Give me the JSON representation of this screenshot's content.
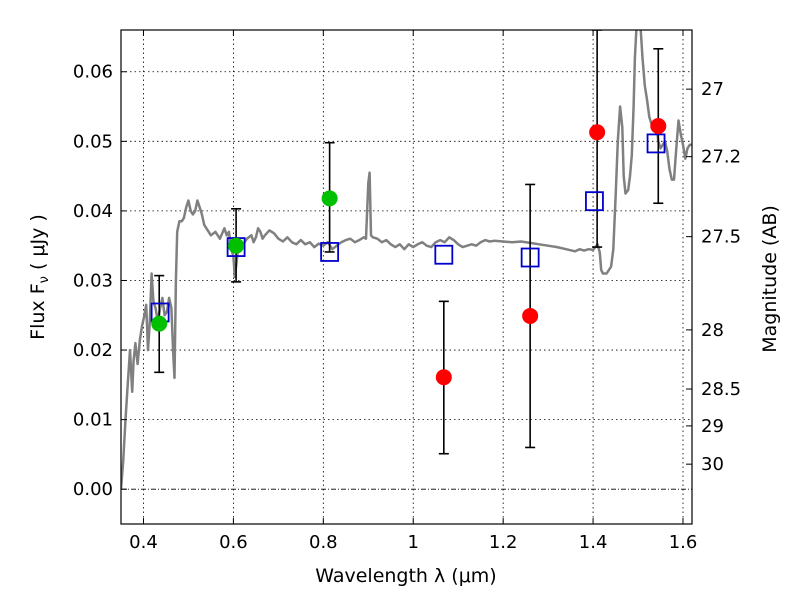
{
  "chart_data": {
    "type": "scatter",
    "xlabel": "Wavelength  λ (μm)",
    "ylabel": "Flux  F",
    "ylabel_sub": "ν",
    "ylabel_unit": "  ( μJy )",
    "y2label": "Magnitude (AB)",
    "xlim": [
      0.35,
      1.62
    ],
    "ylim": [
      -0.005,
      0.066
    ],
    "grid": true,
    "x_ticks": [
      {
        "value": 0.4,
        "label": "0.4"
      },
      {
        "value": 0.6,
        "label": "0.6"
      },
      {
        "value": 0.8,
        "label": "0.8"
      },
      {
        "value": 1.0,
        "label": "1"
      },
      {
        "value": 1.2,
        "label": "1.2"
      },
      {
        "value": 1.4,
        "label": "1.4"
      },
      {
        "value": 1.6,
        "label": "1.6"
      }
    ],
    "y_ticks": [
      {
        "value": 0.0,
        "label": "0.00"
      },
      {
        "value": 0.01,
        "label": "0.01"
      },
      {
        "value": 0.02,
        "label": "0.02"
      },
      {
        "value": 0.03,
        "label": "0.03"
      },
      {
        "value": 0.04,
        "label": "0.04"
      },
      {
        "value": 0.05,
        "label": "0.05"
      },
      {
        "value": 0.06,
        "label": "0.06"
      }
    ],
    "y2_ticks": [
      {
        "flux": 0.0575,
        "label": "27"
      },
      {
        "flux": 0.0478,
        "label": "27.2"
      },
      {
        "flux": 0.0363,
        "label": "27.5"
      },
      {
        "flux": 0.0229,
        "label": "28"
      },
      {
        "flux": 0.0144,
        "label": "28.5"
      },
      {
        "flux": 0.0091,
        "label": "29"
      },
      {
        "flux": 0.0036,
        "label": "30"
      }
    ],
    "series": [
      {
        "kind": "line",
        "color": "#808080",
        "points": [
          [
            0.35,
            0.0
          ],
          [
            0.355,
            0.004
          ],
          [
            0.36,
            0.01
          ],
          [
            0.365,
            0.015
          ],
          [
            0.37,
            0.02
          ],
          [
            0.375,
            0.014
          ],
          [
            0.378,
            0.0185
          ],
          [
            0.382,
            0.021
          ],
          [
            0.387,
            0.018
          ],
          [
            0.392,
            0.0215
          ],
          [
            0.397,
            0.0235
          ],
          [
            0.402,
            0.025
          ],
          [
            0.406,
            0.0265
          ],
          [
            0.41,
            0.02
          ],
          [
            0.414,
            0.024
          ],
          [
            0.418,
            0.031
          ],
          [
            0.422,
            0.027
          ],
          [
            0.427,
            0.026
          ],
          [
            0.432,
            0.024
          ],
          [
            0.437,
            0.026
          ],
          [
            0.442,
            0.0275
          ],
          [
            0.447,
            0.025
          ],
          [
            0.452,
            0.0255
          ],
          [
            0.457,
            0.0275
          ],
          [
            0.462,
            0.026
          ],
          [
            0.466,
            0.0195
          ],
          [
            0.469,
            0.016
          ],
          [
            0.472,
            0.03
          ],
          [
            0.475,
            0.037
          ],
          [
            0.48,
            0.0385
          ],
          [
            0.485,
            0.0385
          ],
          [
            0.49,
            0.039
          ],
          [
            0.495,
            0.0405
          ],
          [
            0.5,
            0.0415
          ],
          [
            0.505,
            0.04
          ],
          [
            0.51,
            0.0395
          ],
          [
            0.515,
            0.04
          ],
          [
            0.52,
            0.0415
          ],
          [
            0.525,
            0.0405
          ],
          [
            0.53,
            0.0395
          ],
          [
            0.535,
            0.038
          ],
          [
            0.54,
            0.0375
          ],
          [
            0.55,
            0.0365
          ],
          [
            0.56,
            0.037
          ],
          [
            0.57,
            0.036
          ],
          [
            0.58,
            0.0375
          ],
          [
            0.585,
            0.0365
          ],
          [
            0.59,
            0.037
          ],
          [
            0.595,
            0.0345
          ],
          [
            0.6,
            0.0335
          ],
          [
            0.603,
            0.0305
          ],
          [
            0.607,
            0.0325
          ],
          [
            0.61,
            0.0345
          ],
          [
            0.62,
            0.035
          ],
          [
            0.63,
            0.036
          ],
          [
            0.64,
            0.0365
          ],
          [
            0.645,
            0.0355
          ],
          [
            0.65,
            0.0362
          ],
          [
            0.655,
            0.0375
          ],
          [
            0.66,
            0.037
          ],
          [
            0.665,
            0.036
          ],
          [
            0.67,
            0.0365
          ],
          [
            0.68,
            0.0372
          ],
          [
            0.69,
            0.0368
          ],
          [
            0.7,
            0.036
          ],
          [
            0.71,
            0.0356
          ],
          [
            0.72,
            0.0362
          ],
          [
            0.73,
            0.0355
          ],
          [
            0.74,
            0.0352
          ],
          [
            0.75,
            0.0358
          ],
          [
            0.76,
            0.0352
          ],
          [
            0.77,
            0.0355
          ],
          [
            0.78,
            0.0348
          ],
          [
            0.79,
            0.0353
          ],
          [
            0.8,
            0.035
          ],
          [
            0.81,
            0.0355
          ],
          [
            0.82,
            0.0345
          ],
          [
            0.83,
            0.035
          ],
          [
            0.84,
            0.0355
          ],
          [
            0.85,
            0.0358
          ],
          [
            0.86,
            0.036
          ],
          [
            0.87,
            0.0355
          ],
          [
            0.88,
            0.0358
          ],
          [
            0.89,
            0.0362
          ],
          [
            0.895,
            0.036
          ],
          [
            0.9,
            0.044
          ],
          [
            0.903,
            0.0455
          ],
          [
            0.906,
            0.0365
          ],
          [
            0.91,
            0.0362
          ],
          [
            0.92,
            0.036
          ],
          [
            0.93,
            0.0355
          ],
          [
            0.94,
            0.0358
          ],
          [
            0.95,
            0.0352
          ],
          [
            0.96,
            0.0348
          ],
          [
            0.97,
            0.0352
          ],
          [
            0.98,
            0.0345
          ],
          [
            0.99,
            0.0352
          ],
          [
            1.0,
            0.0348
          ],
          [
            1.01,
            0.0352
          ],
          [
            1.02,
            0.0355
          ],
          [
            1.03,
            0.035
          ],
          [
            1.04,
            0.0348
          ],
          [
            1.05,
            0.0355
          ],
          [
            1.06,
            0.0358
          ],
          [
            1.07,
            0.0355
          ],
          [
            1.08,
            0.0362
          ],
          [
            1.09,
            0.0358
          ],
          [
            1.1,
            0.0352
          ],
          [
            1.11,
            0.0348
          ],
          [
            1.12,
            0.035
          ],
          [
            1.13,
            0.0352
          ],
          [
            1.14,
            0.035
          ],
          [
            1.15,
            0.0355
          ],
          [
            1.16,
            0.0358
          ],
          [
            1.17,
            0.0356
          ],
          [
            1.18,
            0.0357
          ],
          [
            1.2,
            0.0356
          ],
          [
            1.22,
            0.0355
          ],
          [
            1.24,
            0.0356
          ],
          [
            1.26,
            0.0354
          ],
          [
            1.28,
            0.0352
          ],
          [
            1.3,
            0.035
          ],
          [
            1.32,
            0.0348
          ],
          [
            1.34,
            0.0345
          ],
          [
            1.36,
            0.0342
          ],
          [
            1.37,
            0.0345
          ],
          [
            1.38,
            0.0343
          ],
          [
            1.39,
            0.0345
          ],
          [
            1.4,
            0.0344
          ],
          [
            1.41,
            0.0352
          ],
          [
            1.415,
            0.034
          ],
          [
            1.418,
            0.0315
          ],
          [
            1.422,
            0.031
          ],
          [
            1.43,
            0.031
          ],
          [
            1.44,
            0.032
          ],
          [
            1.445,
            0.0345
          ],
          [
            1.45,
            0.042
          ],
          [
            1.455,
            0.05
          ],
          [
            1.46,
            0.055
          ],
          [
            1.465,
            0.052
          ],
          [
            1.468,
            0.045
          ],
          [
            1.472,
            0.0425
          ],
          [
            1.478,
            0.043
          ],
          [
            1.482,
            0.045
          ],
          [
            1.486,
            0.048
          ],
          [
            1.49,
            0.055
          ],
          [
            1.493,
            0.062
          ],
          [
            1.497,
            0.067
          ],
          [
            1.505,
            0.067
          ],
          [
            1.51,
            0.062
          ],
          [
            1.515,
            0.058
          ],
          [
            1.52,
            0.056
          ],
          [
            1.525,
            0.0535
          ],
          [
            1.53,
            0.0525
          ],
          [
            1.535,
            0.0515
          ],
          [
            1.54,
            0.053
          ],
          [
            1.545,
            0.05
          ],
          [
            1.55,
            0.049
          ],
          [
            1.555,
            0.0495
          ],
          [
            1.56,
            0.05
          ],
          [
            1.565,
            0.0485
          ],
          [
            1.57,
            0.046
          ],
          [
            1.575,
            0.0445
          ],
          [
            1.58,
            0.0445
          ],
          [
            1.585,
            0.049
          ],
          [
            1.59,
            0.053
          ],
          [
            1.595,
            0.051
          ],
          [
            1.6,
            0.0495
          ],
          [
            1.605,
            0.0475
          ],
          [
            1.61,
            0.049
          ],
          [
            1.615,
            0.0495
          ],
          [
            1.62,
            0.0495
          ]
        ]
      },
      {
        "kind": "errorbar",
        "color": "#000000",
        "points": [
          {
            "x": 0.435,
            "low": 0.0168,
            "high": 0.0307
          },
          {
            "x": 0.606,
            "low": 0.0298,
            "high": 0.0403
          },
          {
            "x": 0.814,
            "low": 0.0341,
            "high": 0.0498
          },
          {
            "x": 1.068,
            "low": 0.0051,
            "high": 0.027
          },
          {
            "x": 1.26,
            "low": 0.006,
            "high": 0.0438
          },
          {
            "x": 1.409,
            "low": 0.0348,
            "high": 0.066
          },
          {
            "x": 1.545,
            "low": 0.0411,
            "high": 0.0633
          }
        ]
      },
      {
        "kind": "square",
        "color": "#0000cc",
        "points": [
          [
            0.437,
            0.0254
          ],
          [
            0.606,
            0.0348
          ],
          [
            0.814,
            0.0341
          ],
          [
            1.068,
            0.0337
          ],
          [
            1.26,
            0.0333
          ],
          [
            1.403,
            0.0414
          ],
          [
            1.54,
            0.0497
          ]
        ]
      },
      {
        "kind": "circle",
        "color": "#00c000",
        "points": [
          [
            0.435,
            0.0238
          ],
          [
            0.606,
            0.035
          ],
          [
            0.814,
            0.0418
          ]
        ]
      },
      {
        "kind": "circle",
        "color": "#ff0000",
        "points": [
          [
            1.068,
            0.0161
          ],
          [
            1.26,
            0.0249
          ],
          [
            1.409,
            0.0513
          ],
          [
            1.545,
            0.0522
          ]
        ]
      }
    ]
  }
}
